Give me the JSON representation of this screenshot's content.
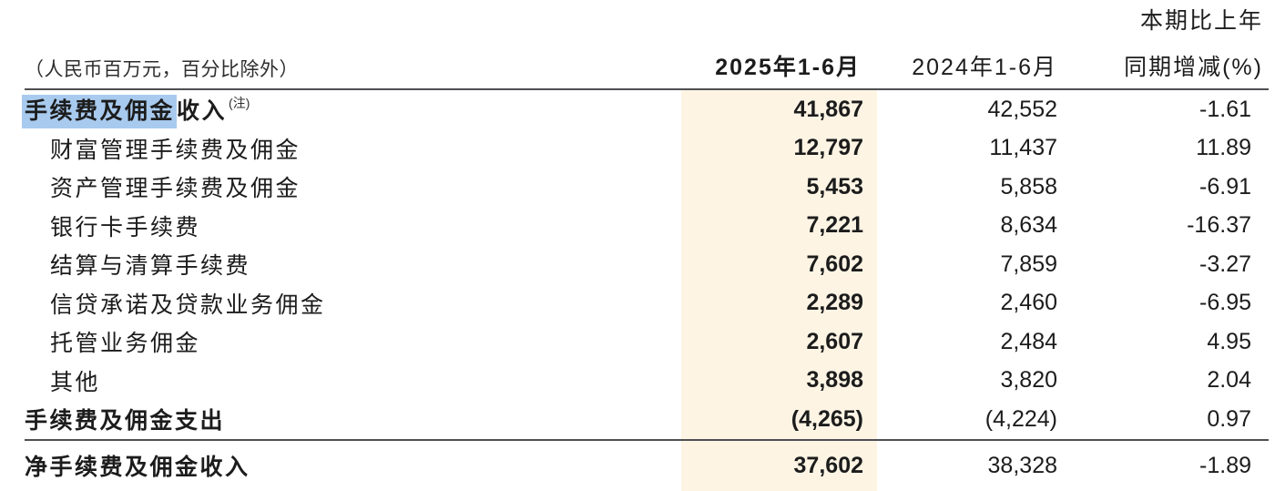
{
  "colors": {
    "column_highlight_band": "#fdf4e4",
    "text_selection_blue": "#a8caee",
    "rule_line": "#4e4f52",
    "text": "#1c1c1c"
  },
  "table": {
    "unit_note": "（人民币百万元，百分比除外）",
    "header": {
      "change_col_line1": "本期比上年",
      "col_2025": "2025年1-6月",
      "col_2024": "2024年1-6月",
      "change_col_line2": "同期增减(%)"
    },
    "rows": [
      {
        "label_selected": "手续费及佣金",
        "label_rest": "收入",
        "footnote": "(注)",
        "v2025": "41,867",
        "v2024": "42,552",
        "change": "-1.61"
      },
      {
        "label": "财富管理手续费及佣金",
        "v2025": "12,797",
        "v2024": "11,437",
        "change": "11.89"
      },
      {
        "label": "资产管理手续费及佣金",
        "v2025": "5,453",
        "v2024": "5,858",
        "change": "-6.91"
      },
      {
        "label": "银行卡手续费",
        "v2025": "7,221",
        "v2024": "8,634",
        "change": "-16.37"
      },
      {
        "label": "结算与清算手续费",
        "v2025": "7,602",
        "v2024": "7,859",
        "change": "-3.27"
      },
      {
        "label": "信贷承诺及贷款业务佣金",
        "v2025": "2,289",
        "v2024": "2,460",
        "change": "-6.95"
      },
      {
        "label": "托管业务佣金",
        "v2025": "2,607",
        "v2024": "2,484",
        "change": "4.95"
      },
      {
        "label": "其他",
        "v2025": "3,898",
        "v2024": "3,820",
        "change": "2.04"
      },
      {
        "label": "手续费及佣金支出",
        "v2025": "(4,265)",
        "v2024": "(4,224)",
        "change": "0.97"
      },
      {
        "label": "净手续费及佣金收入",
        "v2025": "37,602",
        "v2024": "38,328",
        "change": "-1.89"
      }
    ]
  }
}
